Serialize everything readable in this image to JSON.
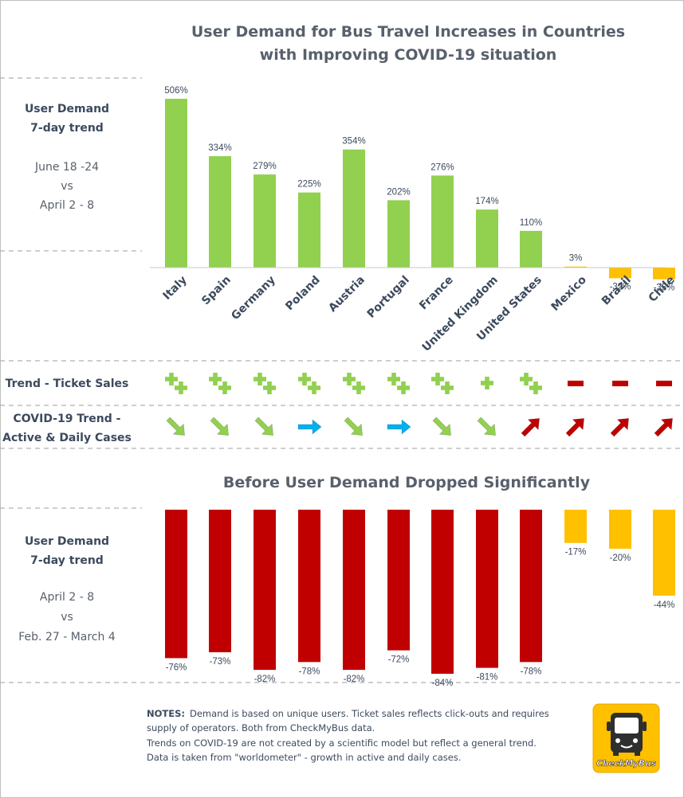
{
  "chart_data": [
    {
      "type": "bar",
      "title": "User Demand for Bus Travel Increases in Countries with Improving COVID-19 situation",
      "title_lines": [
        "User Demand for Bus Travel Increases in Countries",
        "with Improving COVID-19 situation"
      ],
      "side_label": [
        "User Demand",
        "7-day trend"
      ],
      "period_label": [
        "June 18 -24",
        "vs",
        "April 2 - 8"
      ],
      "categories": [
        "Italy",
        "Spain",
        "Germany",
        "Poland",
        "Austria",
        "Portugal",
        "France",
        "United Kingdom",
        "United States",
        "Mexico",
        "Brazil",
        "Chile"
      ],
      "values": [
        506,
        334,
        279,
        225,
        354,
        202,
        276,
        174,
        110,
        3,
        -32,
        -35
      ],
      "value_labels": [
        "506%",
        "334%",
        "279%",
        "225%",
        "354%",
        "202%",
        "276%",
        "174%",
        "110%",
        "3%",
        "-32%",
        "-35%"
      ],
      "bar_colors": [
        "#92d050",
        "#92d050",
        "#92d050",
        "#92d050",
        "#92d050",
        "#92d050",
        "#92d050",
        "#92d050",
        "#92d050",
        "#ffc000",
        "#ffc000",
        "#ffc000"
      ],
      "unit": "%"
    },
    {
      "type": "bar",
      "title": "Before User Demand Dropped Significantly",
      "side_label": [
        "User Demand",
        "7-day trend"
      ],
      "period_label": [
        "April 2 - 8",
        "vs",
        "Feb. 27 - March 4"
      ],
      "categories": [
        "Italy",
        "Spain",
        "Germany",
        "Poland",
        "Austria",
        "Portugal",
        "France",
        "United Kingdom",
        "United States",
        "Mexico",
        "Brazil",
        "Chile"
      ],
      "values": [
        -76,
        -73,
        -82,
        -78,
        -82,
        -72,
        -84,
        -81,
        -78,
        -17,
        -20,
        -44
      ],
      "value_labels": [
        "-76%",
        "-73%",
        "-82%",
        "-78%",
        "-82%",
        "-72%",
        "-84%",
        "-81%",
        "-78%",
        "-17%",
        "-20%",
        "-44%"
      ],
      "bar_colors": [
        "#c00000",
        "#c00000",
        "#c00000",
        "#c00000",
        "#c00000",
        "#c00000",
        "#c00000",
        "#c00000",
        "#c00000",
        "#ffc000",
        "#ffc000",
        "#ffc000"
      ],
      "unit": "%"
    }
  ],
  "ticket_sales": {
    "label": "Trend - Ticket Sales",
    "symbols": [
      "double-plus",
      "double-plus",
      "double-plus",
      "double-plus",
      "double-plus",
      "double-plus",
      "double-plus",
      "plus",
      "double-plus",
      "minus",
      "minus",
      "minus"
    ],
    "colors": {
      "plus": "#92d050",
      "minus": "#c00000"
    }
  },
  "covid_trend": {
    "label_lines": [
      "COVID-19 Trend -",
      "Active & Daily Cases"
    ],
    "arrows": [
      "down",
      "down",
      "down",
      "flat",
      "down",
      "flat",
      "down",
      "down",
      "up",
      "up",
      "up",
      "up"
    ],
    "colors": {
      "down": "#92d050",
      "flat": "#00b0f0",
      "up": "#c00000"
    }
  },
  "notes": {
    "heading": "NOTES:",
    "line1": "Demand is based on unique users. Ticket sales reflects click-outs and requires",
    "line2": "supply of operators. Both from CheckMyBus data.",
    "line3": "Trends on COVID-19 are not created by a scientific model but reflect a general trend.",
    "line4": "Data is taken from \"worldometer\" - growth in active and daily cases."
  },
  "logo": {
    "text": "CheckMyBus",
    "bg_color": "#ffc000"
  }
}
